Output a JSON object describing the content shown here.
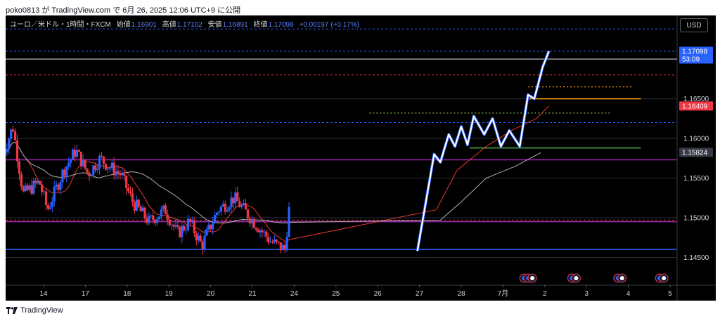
{
  "header": {
    "publish_text": "poko0813 が TradingView.com で 6月 26, 2025 12:06 UTC+9 に公開"
  },
  "legend": {
    "symbol": "ユーロ／米ドル・1時間・FXCM",
    "open_label": "始値",
    "open": "1.16901",
    "high_label": "高値",
    "high": "1.17102",
    "low_label": "安値",
    "low": "1.16891",
    "close_label": "終値",
    "close": "1.17098",
    "change": "+0.00197 (+0.17%)"
  },
  "currency_button": "USD",
  "footer": {
    "brand": "TradingView"
  },
  "colors": {
    "bg": "#000000",
    "up": "#2962ff",
    "down": "#f23645",
    "ma_fast": "#e53935",
    "ma_slow": "#b0b0b0",
    "grid": "#2a2e39"
  },
  "chart_data": {
    "type": "candlestick",
    "symbol": "EUR/USD",
    "timeframe": "1H",
    "y_ticks": [
      "1.14500",
      "1.15000",
      "1.15500",
      "1.16000",
      "1.16500"
    ],
    "ylim": [
      1.1415,
      1.1755
    ],
    "x_ticks": [
      "14",
      "17",
      "18",
      "19",
      "20",
      "21",
      "24",
      "25",
      "26",
      "27",
      "28",
      "7月",
      "2",
      "3",
      "4",
      "5"
    ],
    "price_labels": [
      {
        "price": 1.17098,
        "text": "1.17098",
        "sub": "53:09",
        "color": "#2962ff"
      },
      {
        "price": 1.16409,
        "text": "1.16409",
        "color": "#f23645"
      },
      {
        "price": 1.15824,
        "text": "1.15824",
        "color": "#363a45"
      }
    ],
    "horizontal_lines": [
      {
        "price": 1.1738,
        "color": "#2962ff",
        "style": "dashed"
      },
      {
        "price": 1.171,
        "color": "#2962ff",
        "style": "dashed"
      },
      {
        "price": 1.17,
        "color": "#9598a1",
        "style": "solid"
      },
      {
        "price": 1.168,
        "color": "#f23645",
        "style": "dashed"
      },
      {
        "price": 1.162,
        "color": "#2962ff",
        "style": "dashed"
      },
      {
        "price": 1.1573,
        "color": "#9c27b0",
        "style": "solid"
      },
      {
        "price": 1.1495,
        "color": "#9c27b0",
        "style": "solid"
      },
      {
        "price": 1.1497,
        "color": "#f23645",
        "style": "dashed"
      },
      {
        "price": 1.146,
        "color": "#2962ff",
        "style": "solid"
      }
    ],
    "segments": [
      {
        "x1": 25.6,
        "x2": 28.1,
        "price": 1.1665,
        "color": "#ff9800",
        "style": "dotted"
      },
      {
        "x1": 25.6,
        "x2": 28.3,
        "price": 1.165,
        "color": "#ff9800",
        "style": "solid"
      },
      {
        "x1": 21.8,
        "x2": 27.6,
        "price": 1.1632,
        "color": "#8bc34a",
        "style": "dotted"
      },
      {
        "x1": 24.2,
        "x2": 28.3,
        "price": 1.1588,
        "color": "#4caf50",
        "style": "solid"
      }
    ],
    "swing_path": [
      [
        22.95,
        1.1458
      ],
      [
        23.35,
        1.158
      ],
      [
        23.5,
        1.157
      ],
      [
        23.7,
        1.1605
      ],
      [
        23.85,
        1.159
      ],
      [
        24.0,
        1.1615
      ],
      [
        24.15,
        1.1592
      ],
      [
        24.3,
        1.1628
      ],
      [
        24.55,
        1.1605
      ],
      [
        24.75,
        1.1625
      ],
      [
        24.95,
        1.159
      ],
      [
        25.15,
        1.161
      ],
      [
        25.4,
        1.159
      ],
      [
        25.6,
        1.1655
      ],
      [
        25.75,
        1.165
      ],
      [
        25.95,
        1.169
      ],
      [
        26.1,
        1.171
      ]
    ],
    "event_icons": [
      {
        "x": 25.5,
        "count": 3
      },
      {
        "x": 26.65,
        "count": 2
      },
      {
        "x": 27.75,
        "count": 2
      },
      {
        "x": 28.75,
        "count": 2
      }
    ]
  }
}
